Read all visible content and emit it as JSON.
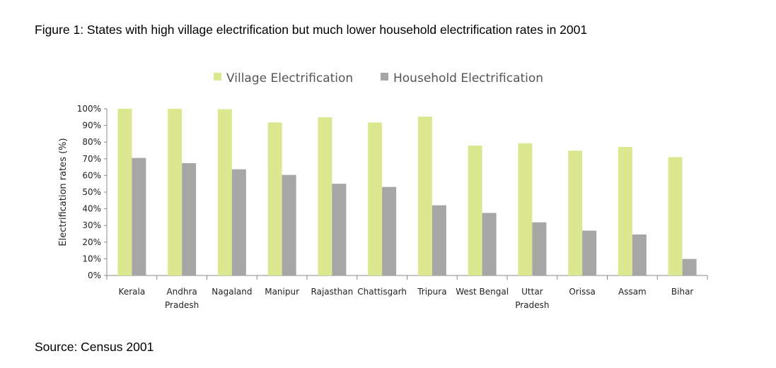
{
  "title": "Figure 1: States with high village electrification but much lower household electrification rates in 2001",
  "source": "Source: Census 2001",
  "chart_data": {
    "type": "bar",
    "title": "Figure 1: States with high village electrification but much lower household electrification rates in 2001",
    "xlabel": "",
    "ylabel": "Electrification rates (%)",
    "ylim": [
      0,
      100
    ],
    "yticks": [
      "0%",
      "10%",
      "20%",
      "30%",
      "40%",
      "50%",
      "60%",
      "70%",
      "80%",
      "90%",
      "100%"
    ],
    "grid": false,
    "legend": "top",
    "categories": [
      [
        "Kerala"
      ],
      [
        "Andhra",
        "Pradesh"
      ],
      [
        "Nagaland"
      ],
      [
        "Manipur"
      ],
      [
        "Rajasthan"
      ],
      [
        "Chattisgarh"
      ],
      [
        "Tripura"
      ],
      [
        "West Bengal"
      ],
      [
        "Uttar",
        "Pradesh"
      ],
      [
        "Orissa"
      ],
      [
        "Assam"
      ],
      [
        "Bihar"
      ]
    ],
    "series": [
      {
        "name": "Village Electrification",
        "color": "#dce88f",
        "values": [
          100,
          100,
          99.7,
          91.8,
          94.9,
          91.8,
          95.3,
          77.9,
          79.3,
          74.9,
          77.1,
          71.0
        ]
      },
      {
        "name": "Household Electrification",
        "color": "#a6a6a6",
        "values": [
          70.5,
          67.4,
          63.7,
          60.3,
          55.0,
          53.1,
          42.1,
          37.5,
          31.9,
          26.9,
          24.6,
          9.9
        ]
      }
    ]
  }
}
